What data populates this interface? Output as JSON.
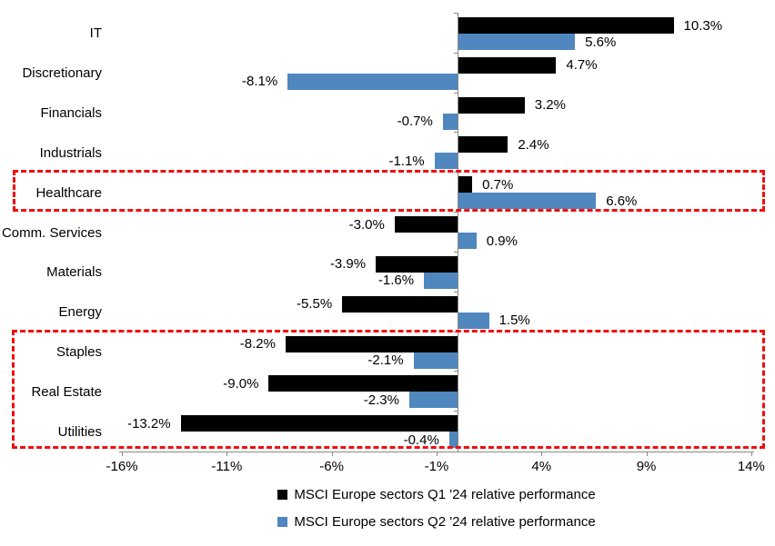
{
  "chart_data": {
    "type": "bar",
    "orientation": "horizontal",
    "title": "",
    "categories": [
      "IT",
      "Discretionary",
      "Financials",
      "Industrials",
      "Healthcare",
      "Comm. Services",
      "Materials",
      "Energy",
      "Staples",
      "Real Estate",
      "Utilities"
    ],
    "series": [
      {
        "name": "MSCI Europe sectors Q1 '24 relative performance",
        "color": "#000000",
        "values": [
          10.3,
          4.7,
          3.2,
          2.4,
          0.7,
          -3.0,
          -3.9,
          -5.5,
          -8.2,
          -9.0,
          -13.2
        ],
        "data_labels": [
          "10.3%",
          "4.7%",
          "3.2%",
          "2.4%",
          "0.7%",
          "-3.0%",
          "-3.9%",
          "-5.5%",
          "-8.2%",
          "-9.0%",
          "-13.2%"
        ]
      },
      {
        "name": "MSCI Europe sectors Q2 '24 relative performance",
        "color": "#4F87BE",
        "values": [
          5.6,
          -8.1,
          -0.7,
          -1.1,
          6.6,
          0.9,
          -1.6,
          1.5,
          -2.1,
          -2.3,
          -0.4
        ],
        "data_labels": [
          "5.6%",
          "-8.1%",
          "-0.7%",
          "-1.1%",
          "6.6%",
          "0.9%",
          "-1.6%",
          "1.5%",
          "-2.1%",
          "-2.3%",
          "-0.4%"
        ]
      }
    ],
    "x_axis": {
      "tick_labels": [
        "-16%",
        "-11%",
        "-6%",
        "-1%",
        "4%",
        "9%",
        "14%"
      ],
      "tick_values": [
        -16,
        -11,
        -6,
        -1,
        4,
        9,
        14
      ],
      "range": [
        -16.3,
        14.2
      ]
    },
    "grid": false,
    "legend_position": "bottom",
    "axis_color": "#898989",
    "highlight_boxes": [
      {
        "categories": [
          "Healthcare"
        ],
        "color": "#F20D0D",
        "style": "dashed"
      },
      {
        "categories": [
          "Staples",
          "Real Estate",
          "Utilities"
        ],
        "color": "#F20D0D",
        "style": "dashed"
      }
    ]
  }
}
